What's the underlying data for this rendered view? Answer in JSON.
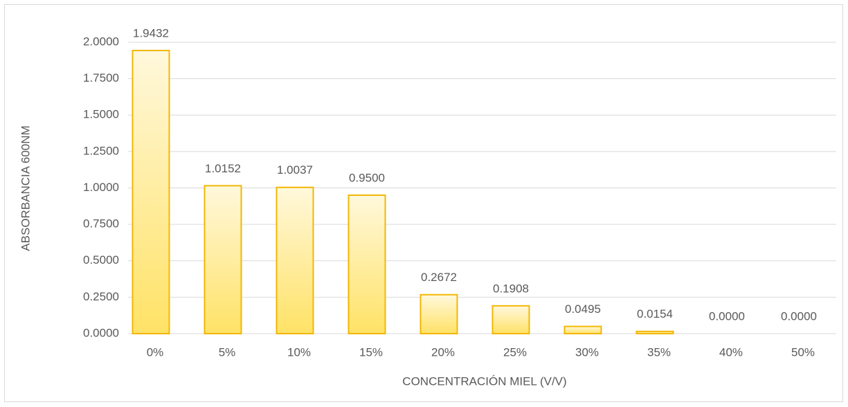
{
  "chart_data": {
    "type": "bar",
    "x_label": "CONCENTRACIÓN MIEL (V/V)",
    "y_label": "ABSORBANCIA 600NM",
    "categories": [
      "0%",
      "5%",
      "10%",
      "15%",
      "20%",
      "25%",
      "30%",
      "35%",
      "40%",
      "50%"
    ],
    "values": [
      1.9432,
      1.0152,
      1.0037,
      0.95,
      0.2672,
      0.1908,
      0.0495,
      0.0154,
      0,
      0
    ],
    "value_labels": [
      "1.9432",
      "1.0152",
      "1.0037",
      "0.9500",
      "0.2672",
      "0.1908",
      "0.0495",
      "0.0154",
      "0.0000",
      "0.0000"
    ],
    "color": "#f2b705",
    "ylim": [
      0,
      2
    ],
    "yticks": [
      {
        "value": 0,
        "label": "0.0000"
      },
      {
        "value": 0.25,
        "label": "0.2500"
      },
      {
        "value": 0.5,
        "label": "0.5000"
      },
      {
        "value": 0.75,
        "label": "0.7500"
      },
      {
        "value": 1,
        "label": "1.0000"
      },
      {
        "value": 1.25,
        "label": "1.2500"
      },
      {
        "value": 1.5,
        "label": "1.5000"
      },
      {
        "value": 1.75,
        "label": "1.7500"
      },
      {
        "value": 2,
        "label": "2.0000"
      }
    ],
    "grid": true
  }
}
